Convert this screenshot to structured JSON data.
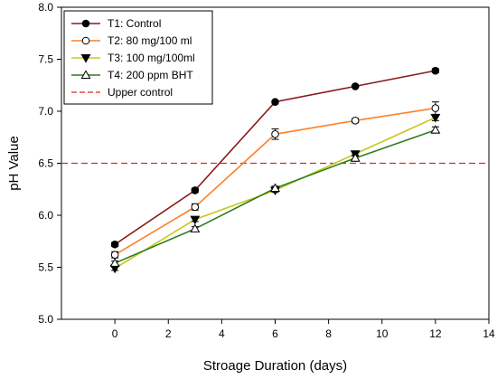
{
  "chart_data": {
    "type": "line",
    "title": "",
    "xlabel": "Stroage Duration (days)",
    "ylabel": "pH Value",
    "xlim": [
      -2,
      14
    ],
    "ylim": [
      5.0,
      8.0
    ],
    "xticks": [
      "0",
      "2",
      "4",
      "6",
      "8",
      "10",
      "12",
      "14"
    ],
    "yticks": [
      "5.0",
      "5.5",
      "6.0",
      "6.5",
      "7.0",
      "7.5",
      "8.0"
    ],
    "grid": false,
    "legend_position": "top-left",
    "x": [
      0,
      3,
      6,
      9,
      12
    ],
    "series": [
      {
        "name": "T1: Control",
        "color": "#8b1a1a",
        "marker": "filled-circle",
        "values": [
          5.72,
          6.24,
          7.09,
          7.24,
          7.39
        ],
        "errors": [
          0.02,
          0.02,
          0.01,
          0.01,
          0.02
        ]
      },
      {
        "name": "T2: 80 mg/100 ml",
        "color": "#ff7f27",
        "marker": "open-circle",
        "values": [
          5.62,
          6.08,
          6.78,
          6.91,
          7.03
        ],
        "errors": [
          0.03,
          0.03,
          0.05,
          0.02,
          0.06
        ]
      },
      {
        "name": "T3: 100 mg/100ml",
        "color": "#c8c81e",
        "marker": "filled-triangle-down",
        "values": [
          5.49,
          5.96,
          6.24,
          6.59,
          6.94
        ],
        "errors": [
          0.02,
          0.02,
          0.02,
          0.02,
          0.03
        ]
      },
      {
        "name": "T4: 200 ppm BHT",
        "color": "#2e7d1e",
        "marker": "open-triangle-up",
        "values": [
          5.54,
          5.87,
          6.26,
          6.55,
          6.82
        ],
        "errors": [
          0.02,
          0.02,
          0.02,
          0.03,
          0.03
        ]
      }
    ],
    "reference_line": {
      "name": "Upper control",
      "y": 6.5,
      "color": "#e32626",
      "style": "dashed"
    }
  }
}
